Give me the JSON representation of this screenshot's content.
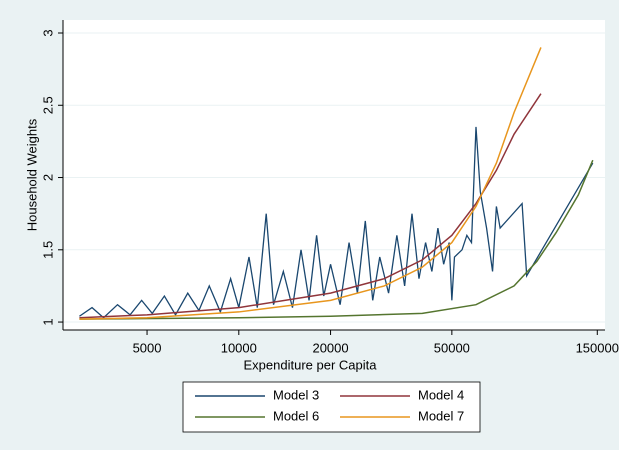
{
  "chart_data": {
    "type": "line",
    "xlabel": "Expenditure per Capita",
    "ylabel": "Household Weights",
    "xlog": true,
    "xlim": [
      2650,
      159000
    ],
    "xticks": [
      5000,
      10000,
      20000,
      50000,
      150000
    ],
    "ylim": [
      0.945,
      3.09
    ],
    "yticks": [
      1,
      1.5,
      2,
      2.5,
      3
    ],
    "grid": true,
    "series": [
      {
        "name": "Model 3",
        "color": "#1a476f",
        "x": [
          3000,
          3300,
          3600,
          4000,
          4400,
          4800,
          5200,
          5700,
          6200,
          6800,
          7400,
          8000,
          8700,
          9400,
          10000,
          10800,
          11500,
          12300,
          13000,
          14000,
          15000,
          16000,
          17000,
          18000,
          19000,
          20000,
          21500,
          23000,
          24500,
          26000,
          27500,
          29000,
          31000,
          33000,
          35000,
          37000,
          39000,
          41000,
          43000,
          45000,
          47000,
          49000,
          50000,
          51000,
          54000,
          56000,
          58000,
          60000,
          62000,
          65000,
          68000,
          70000,
          72000,
          85000,
          88000,
          145000
        ],
        "values": [
          1.04,
          1.1,
          1.03,
          1.12,
          1.05,
          1.15,
          1.06,
          1.18,
          1.05,
          1.2,
          1.08,
          1.25,
          1.07,
          1.3,
          1.1,
          1.45,
          1.1,
          1.75,
          1.12,
          1.35,
          1.1,
          1.5,
          1.15,
          1.6,
          1.18,
          1.4,
          1.12,
          1.55,
          1.2,
          1.7,
          1.15,
          1.45,
          1.2,
          1.6,
          1.25,
          1.75,
          1.3,
          1.55,
          1.35,
          1.65,
          1.4,
          1.55,
          1.15,
          1.45,
          1.5,
          1.6,
          1.55,
          2.35,
          1.9,
          1.65,
          1.35,
          1.8,
          1.65,
          1.82,
          1.32,
          2.1
        ]
      },
      {
        "name": "Model 4",
        "color": "#90353b",
        "x": [
          3000,
          5000,
          10000,
          20000,
          30000,
          40000,
          50000,
          60000,
          70000,
          80000,
          98000
        ],
        "values": [
          1.03,
          1.05,
          1.1,
          1.2,
          1.3,
          1.43,
          1.6,
          1.82,
          2.05,
          2.3,
          2.58
        ]
      },
      {
        "name": "Model 6",
        "color": "#55752f",
        "x": [
          3000,
          10000,
          20000,
          40000,
          60000,
          80000,
          95000,
          110000,
          130000,
          145000
        ],
        "values": [
          1.02,
          1.03,
          1.04,
          1.06,
          1.12,
          1.25,
          1.42,
          1.62,
          1.88,
          2.12
        ]
      },
      {
        "name": "Model 7",
        "color": "#e8961e",
        "x": [
          3000,
          5000,
          10000,
          20000,
          30000,
          40000,
          50000,
          60000,
          70000,
          80000,
          98000
        ],
        "values": [
          1.02,
          1.03,
          1.07,
          1.15,
          1.25,
          1.38,
          1.55,
          1.8,
          2.1,
          2.45,
          2.9
        ]
      }
    ]
  }
}
